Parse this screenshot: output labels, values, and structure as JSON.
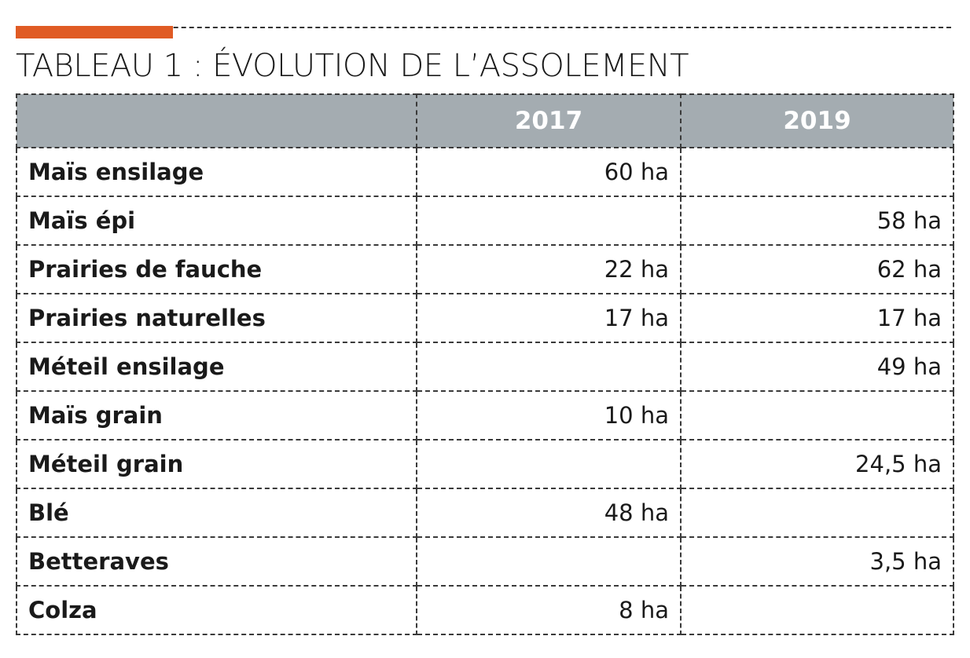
{
  "title": "TABLEAU 1 : ÉVOLUTION DE L’ASSOLEMENT",
  "colors": {
    "accent": "#e05b24",
    "header_bg": "#a4acb1",
    "header_text": "#ffffff"
  },
  "table": {
    "columns": [
      "",
      "2017",
      "2019"
    ],
    "rows": [
      {
        "label": "Maïs ensilage",
        "v2017": "60 ha",
        "v2019": ""
      },
      {
        "label": "Maïs épi",
        "v2017": "",
        "v2019": "58 ha"
      },
      {
        "label": "Prairies de fauche",
        "v2017": "22 ha",
        "v2019": "62 ha"
      },
      {
        "label": "Prairies naturelles",
        "v2017": "17 ha",
        "v2019": "17 ha"
      },
      {
        "label": "Méteil ensilage",
        "v2017": "",
        "v2019": "49 ha"
      },
      {
        "label": "Maïs grain",
        "v2017": "10 ha",
        "v2019": ""
      },
      {
        "label": "Méteil grain",
        "v2017": "",
        "v2019": "24,5 ha"
      },
      {
        "label": "Blé",
        "v2017": "48 ha",
        "v2019": ""
      },
      {
        "label": "Betteraves",
        "v2017": "",
        "v2019": "3,5 ha"
      },
      {
        "label": "Colza",
        "v2017": "8 ha",
        "v2019": ""
      }
    ]
  }
}
